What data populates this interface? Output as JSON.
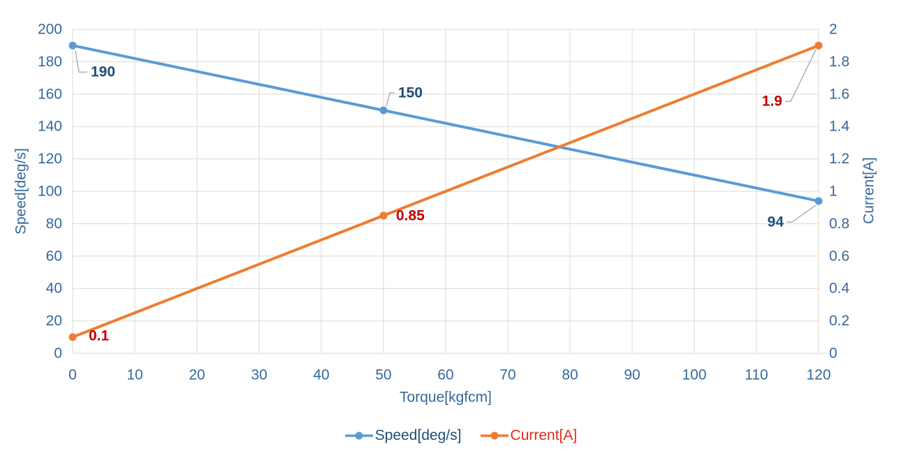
{
  "chart_data": {
    "type": "line",
    "title": "",
    "xlabel": "Torque[kgfcm]",
    "ylabel_left": "Speed[deg/s]",
    "ylabel_right": "Current[A]",
    "grid": true,
    "legend_position": "bottom",
    "x_axis": {
      "min": 0,
      "max": 120,
      "step": 10,
      "ticks": [
        "0",
        "10",
        "20",
        "30",
        "40",
        "50",
        "60",
        "70",
        "80",
        "90",
        "100",
        "110",
        "120"
      ]
    },
    "y_axis_left": {
      "min": 0,
      "max": 200,
      "step": 20,
      "ticks": [
        "0",
        "20",
        "40",
        "60",
        "80",
        "100",
        "120",
        "140",
        "160",
        "180",
        "200"
      ]
    },
    "y_axis_right": {
      "min": 0,
      "max": 2,
      "step": 0.2,
      "ticks": [
        "0",
        "0.2",
        "0.4",
        "0.6",
        "0.8",
        "1",
        "1.2",
        "1.4",
        "1.6",
        "1.8",
        "2"
      ]
    },
    "series": [
      {
        "name": "Speed[deg/s]",
        "axis": "left",
        "color": "#5B9BD5",
        "label_color": "#1F4E79",
        "x": [
          0,
          50,
          120
        ],
        "values": [
          190,
          150,
          94
        ],
        "point_labels": [
          {
            "text": "190",
            "dx": 26,
            "dy": 38,
            "leader": true
          },
          {
            "text": "150",
            "dx": 21,
            "dy": -25,
            "leader": true
          },
          {
            "text": "94",
            "dx": -50,
            "dy": 30,
            "leader": true
          }
        ]
      },
      {
        "name": "Current[A]",
        "axis": "right",
        "color": "#ED7D31",
        "label_color": "#C00000",
        "x": [
          0,
          50,
          120
        ],
        "values": [
          0.1,
          0.85,
          1.9
        ],
        "point_labels": [
          {
            "text": "0.1",
            "dx": 23,
            "dy": -2,
            "leader": false
          },
          {
            "text": "0.85",
            "dx": 18,
            "dy": 0,
            "leader": false
          },
          {
            "text": "1.9",
            "dx": -52,
            "dy": 80,
            "leader": true
          }
        ]
      }
    ],
    "legend": {
      "items": [
        {
          "label": "Speed[deg/s]",
          "color": "#5B9BD5",
          "text_color": "#1F4E79"
        },
        {
          "label": "Current[A]",
          "color": "#ED7D31",
          "text_color": "#E02B20"
        }
      ]
    },
    "colors": {
      "background": "#FFFFFF",
      "grid": "#D9D9D9",
      "tick_text": "#35689B",
      "axis_title_text": "#35689B",
      "leader_line": "#A6A6A6"
    }
  }
}
